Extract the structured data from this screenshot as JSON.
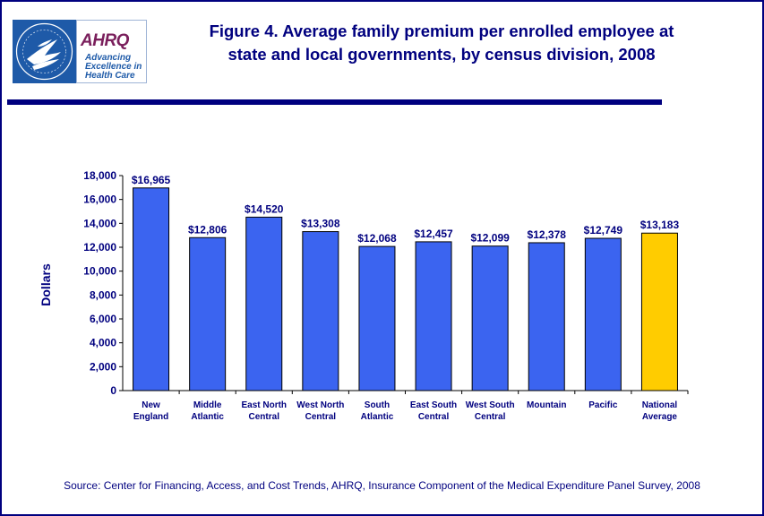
{
  "header": {
    "title_line1": "Figure 4. Average family premium per enrolled employee at",
    "title_line2": "state and local governments, by census division, 2008",
    "ahrq_logo_text": "AHRQ",
    "ahrq_tagline": "Advancing Excellence in Health Care",
    "hhs_logo_icon": "hhs-eagle-seal-icon"
  },
  "colors": {
    "title": "#00007f",
    "bar": "#3b64f0",
    "highlight_bar": "#ffcc00",
    "axis_text": "#00007f"
  },
  "chart_data": {
    "type": "bar",
    "title": "Figure 4. Average family premium per enrolled employee at state and local governments, by census division, 2008",
    "ylabel": "Dollars",
    "xlabel": "",
    "ylim": [
      0,
      18000
    ],
    "ytick_step": 2000,
    "yticks": [
      "0",
      "2,000",
      "4,000",
      "6,000",
      "8,000",
      "10,000",
      "12,000",
      "14,000",
      "16,000",
      "18,000"
    ],
    "grid": false,
    "categories": [
      [
        "New",
        "England"
      ],
      [
        "Middle",
        "Atlantic"
      ],
      [
        "East North",
        "Central"
      ],
      [
        "West North",
        "Central"
      ],
      [
        "South",
        "Atlantic"
      ],
      [
        "East South",
        "Central"
      ],
      [
        "West South",
        "Central"
      ],
      [
        "Mountain"
      ],
      [
        "Pacific"
      ],
      [
        "National",
        "Average"
      ]
    ],
    "values": [
      16965,
      12806,
      14520,
      13308,
      12068,
      12457,
      12099,
      12378,
      12749,
      13183
    ],
    "data_labels": [
      "$16,965",
      "$12,806",
      "$14,520",
      "$13,308",
      "$12,068",
      "$12,457",
      "$12,099",
      "$12,378",
      "$12,749",
      "$13,183"
    ],
    "highlight_index": 9
  },
  "footer": {
    "source": "Source: Center for Financing, Access, and Cost Trends, AHRQ, Insurance Component of the Medical Expenditure Panel Survey, 2008"
  }
}
